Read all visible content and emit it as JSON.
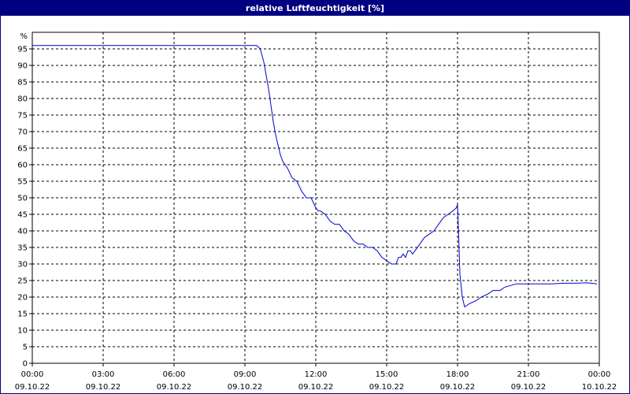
{
  "chart_data": {
    "type": "line",
    "title": "relative Luftfeuchtigkeit [%]",
    "ylabel": "%",
    "xlabel": "",
    "ylim": [
      0,
      100
    ],
    "y_ticks": [
      0,
      5,
      10,
      15,
      20,
      25,
      30,
      35,
      40,
      45,
      50,
      55,
      60,
      65,
      70,
      75,
      80,
      85,
      90,
      95
    ],
    "x_ticks": [
      {
        "hour": 0,
        "time": "00:00",
        "date": "09.10.22"
      },
      {
        "hour": 3,
        "time": "03:00",
        "date": "09.10.22"
      },
      {
        "hour": 6,
        "time": "06:00",
        "date": "09.10.22"
      },
      {
        "hour": 9,
        "time": "09:00",
        "date": "09.10.22"
      },
      {
        "hour": 12,
        "time": "12:00",
        "date": "09.10.22"
      },
      {
        "hour": 15,
        "time": "15:00",
        "date": "09.10.22"
      },
      {
        "hour": 18,
        "time": "18:00",
        "date": "09.10.22"
      },
      {
        "hour": 21,
        "time": "21:00",
        "date": "09.10.22"
      },
      {
        "hour": 24,
        "time": "00:00",
        "date": "10.10.22"
      }
    ],
    "xlim": [
      0,
      24
    ],
    "grid": true,
    "line_color": "#0000cc",
    "series": [
      {
        "x": [
          0,
          9.5,
          9.65,
          9.8,
          9.9,
          10.0,
          10.1,
          10.2,
          10.3,
          10.4,
          10.5,
          10.6,
          10.7,
          10.8,
          11.0,
          11.2,
          11.4,
          11.6,
          11.8,
          12.0,
          12.1,
          12.2,
          12.4,
          12.6,
          12.8,
          13.0,
          13.2,
          13.4,
          13.6,
          13.8,
          14.0,
          14.2,
          14.4,
          14.6,
          14.8,
          15.0,
          15.2,
          15.4,
          15.5,
          15.6,
          15.7,
          15.8,
          15.9,
          16.0,
          16.1,
          16.2,
          16.4,
          16.6,
          16.8,
          17.0,
          17.2,
          17.4,
          17.6,
          17.8,
          17.95,
          18.0,
          18.05,
          18.1,
          18.2,
          18.3,
          18.5,
          18.8,
          19.0,
          19.3,
          19.5,
          19.8,
          20.0,
          20.5,
          21.0,
          21.5,
          22.0,
          22.5,
          23.0,
          23.5,
          23.9
        ],
        "y": [
          96,
          96,
          95,
          91,
          87,
          83,
          78,
          73,
          69,
          66,
          63,
          61,
          60,
          59,
          56,
          55,
          52,
          50,
          50,
          47,
          46,
          46,
          45,
          43,
          42,
          42,
          40,
          39,
          37,
          36,
          36,
          35,
          35,
          34,
          32,
          31,
          30,
          30,
          32,
          32,
          33,
          32,
          34,
          34,
          33,
          34,
          36,
          38,
          39,
          40,
          42,
          44,
          45,
          46,
          47,
          48,
          38,
          27,
          20,
          17,
          18,
          19,
          20,
          21,
          22,
          22,
          23,
          24,
          24,
          24,
          24,
          24.2,
          24.2,
          24.3,
          24
        ]
      }
    ]
  }
}
